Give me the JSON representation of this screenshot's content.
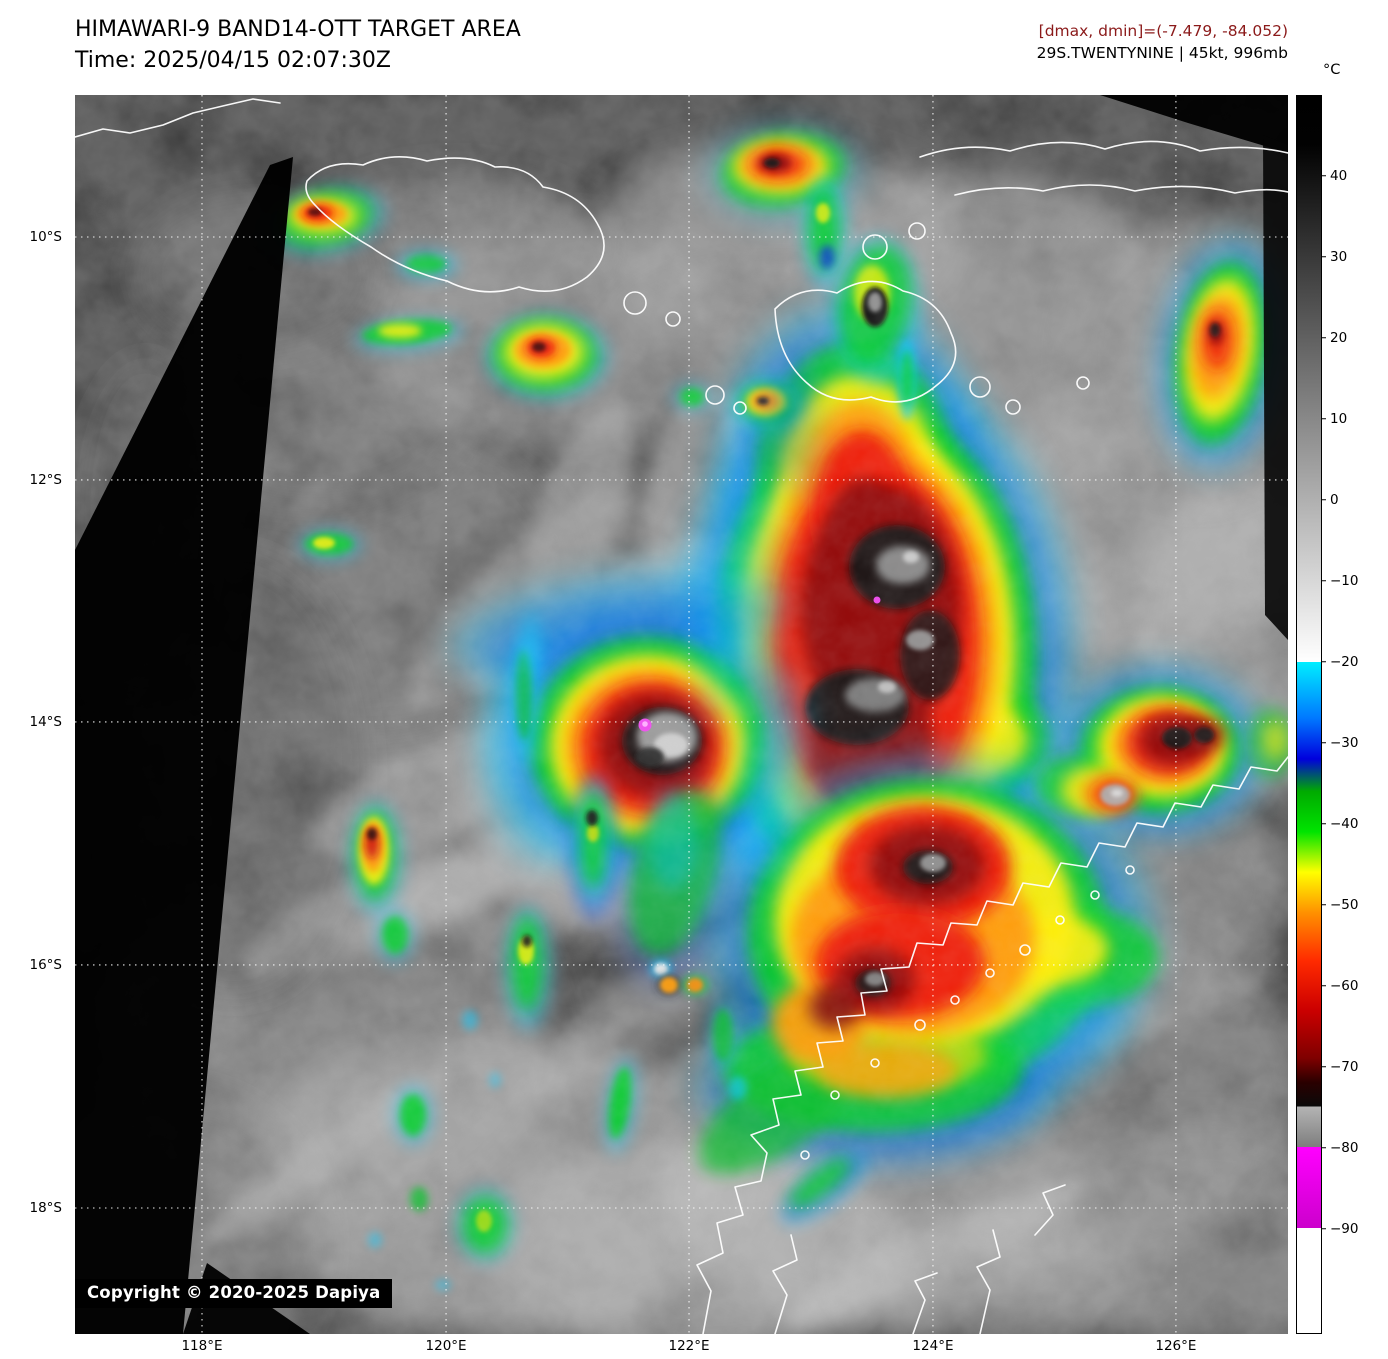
{
  "header": {
    "title": "HIMAWARI-9 BAND14-OTT TARGET AREA",
    "time_label": "Time: 2025/04/15 02:07:30Z",
    "dmax_dmin": "[dmax, dmin]=(-7.479, -84.052)",
    "dmax_dmin_color": "#8b1a1a",
    "storm_info": "29S.TWENTYNINE | 45kt, 996mb"
  },
  "colorbar": {
    "unit": "°C",
    "top_value": 50,
    "bottom_value": -103,
    "ticks": [
      {
        "v": 40,
        "label": "40"
      },
      {
        "v": 30,
        "label": "30"
      },
      {
        "v": 20,
        "label": "20"
      },
      {
        "v": 10,
        "label": "10"
      },
      {
        "v": 0,
        "label": "0"
      },
      {
        "v": -10,
        "label": "−10"
      },
      {
        "v": -20,
        "label": "−20"
      },
      {
        "v": -30,
        "label": "−30"
      },
      {
        "v": -40,
        "label": "−40"
      },
      {
        "v": -50,
        "label": "−50"
      },
      {
        "v": -60,
        "label": "−60"
      },
      {
        "v": -70,
        "label": "−70"
      },
      {
        "v": -80,
        "label": "−80"
      },
      {
        "v": -90,
        "label": "−90"
      }
    ],
    "stops": [
      {
        "t": 50,
        "c": "#000000"
      },
      {
        "t": 44,
        "c": "#020202"
      },
      {
        "t": -20,
        "c": "#ffffff"
      },
      {
        "t": -20,
        "c": "#00eeff"
      },
      {
        "t": -27,
        "c": "#0077ff"
      },
      {
        "t": -32,
        "c": "#0000dd"
      },
      {
        "t": -36,
        "c": "#00aa00"
      },
      {
        "t": -41,
        "c": "#00e400"
      },
      {
        "t": -46,
        "c": "#ffff00"
      },
      {
        "t": -51,
        "c": "#ff9100"
      },
      {
        "t": -57,
        "c": "#ff2a00"
      },
      {
        "t": -63,
        "c": "#cc0000"
      },
      {
        "t": -69,
        "c": "#7f0000"
      },
      {
        "t": -72,
        "c": "#2a0000"
      },
      {
        "t": -75,
        "c": "#0a0a0a"
      },
      {
        "t": -75,
        "c": "#b4b4b4"
      },
      {
        "t": -80,
        "c": "#7e7e7e"
      },
      {
        "t": -80,
        "c": "#ff00ff"
      },
      {
        "t": -90,
        "c": "#cc00cc"
      },
      {
        "t": -90,
        "c": "#ffffff"
      },
      {
        "t": -103,
        "c": "#ffffff"
      }
    ]
  },
  "map": {
    "lat_ticks": [
      {
        "label": "10°S",
        "f": 0.1146
      },
      {
        "label": "12°S",
        "f": 0.3107
      },
      {
        "label": "14°S",
        "f": 0.506
      },
      {
        "label": "16°S",
        "f": 0.7021
      },
      {
        "label": "18°S",
        "f": 0.8983
      }
    ],
    "lon_ticks": [
      {
        "label": "118°E",
        "f": 0.1047
      },
      {
        "label": "120°E",
        "f": 0.3059
      },
      {
        "label": "122°E",
        "f": 0.5062
      },
      {
        "label": "124°E",
        "f": 0.7073
      },
      {
        "label": "126°E",
        "f": 0.9076
      }
    ],
    "copyright": "Copyright © 2020-2025 Dapiya",
    "storm_center_color": "#ee55ee"
  }
}
